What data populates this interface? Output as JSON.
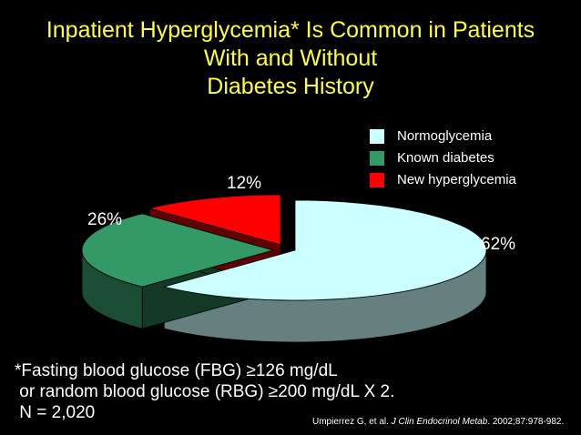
{
  "title": {
    "line1": "Inpatient Hyperglycemia* Is Common in Patients",
    "line2": "With and Without",
    "line3": "Diabetes History"
  },
  "chart_data": {
    "type": "pie",
    "categories": [
      "Normoglycemia",
      "Known diabetes",
      "New hyperglycemia"
    ],
    "values": [
      62,
      26,
      12
    ],
    "value_labels": [
      "62%",
      "26%",
      "12%"
    ],
    "colors": [
      "#ccffff",
      "#339966",
      "#ff0000"
    ],
    "style": "3d-exploded",
    "legend_position": "top-right"
  },
  "footnote": {
    "line1": "*Fasting blood glucose (FBG) ≥126 mg/dL",
    "line2": " or random blood glucose (RBG) ≥200 mg/dL X 2.",
    "line3": " N = 2,020"
  },
  "citation": {
    "authors": "Umpierrez G, et al. ",
    "journal": "J Clin Endocrinol Metab",
    "details": ". 2002;87:978-982."
  }
}
